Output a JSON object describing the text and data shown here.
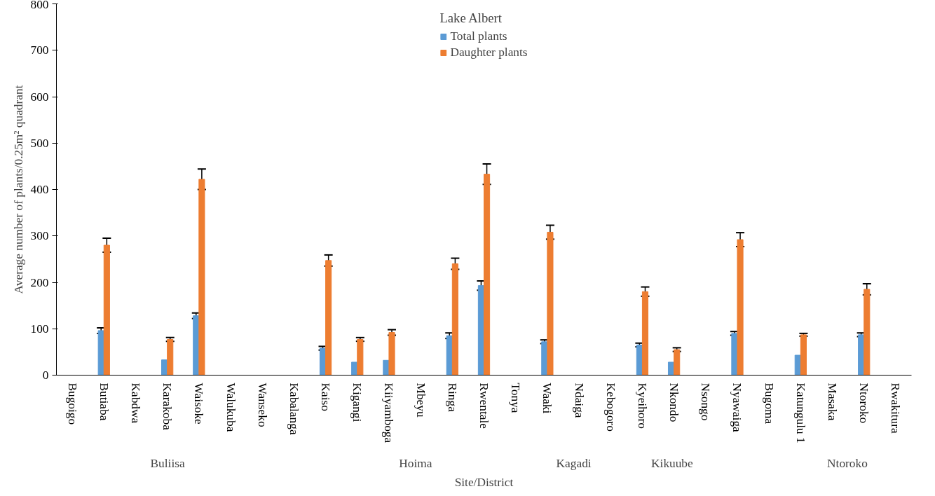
{
  "chart_data": {
    "type": "bar",
    "xlabel": "Site/District",
    "ylabel": "Average number of plants/0.25m² quadrant",
    "legend_title": "Lake Albert",
    "legend": "top",
    "grid": false,
    "categories": [
      "Bugoigo",
      "Butiaba",
      "Kabdwa",
      "Karakoba",
      "Waisoke",
      "Walukuba",
      "Wanseko",
      "Kabalanga",
      "Kaiso",
      "Kigangi",
      "Kiiyamboga",
      "Mbeyu",
      "Ringa",
      "Rwentale",
      "Tonya",
      "Waaki",
      "Ndaiga",
      "Kebogoro",
      "Kyeihoro",
      "Nkondo",
      "Nsongo",
      "Nyawaiga",
      "Bugoma",
      "Katungulu 1",
      "Masaka",
      "Ntoroko",
      "Rwakitura"
    ],
    "ylim": [
      0,
      800
    ],
    "yticks": [
      0,
      100,
      200,
      300,
      400,
      500,
      600,
      700,
      800
    ],
    "series": [
      {
        "name": "Total plants",
        "color": "#5b9bd5",
        "values": [
          null,
          96,
          null,
          33,
          128,
          null,
          null,
          null,
          58,
          28,
          32,
          null,
          85,
          193,
          null,
          72,
          null,
          null,
          65,
          28,
          null,
          90,
          null,
          43,
          null,
          87,
          null
        ],
        "errors": [
          null,
          6,
          null,
          null,
          6,
          null,
          null,
          null,
          4,
          null,
          null,
          null,
          6,
          10,
          null,
          4,
          null,
          null,
          4,
          null,
          null,
          4,
          null,
          null,
          null,
          4,
          null
        ]
      },
      {
        "name": "Daughter plants",
        "color": "#ed7d31",
        "values": [
          null,
          280,
          null,
          77,
          422,
          null,
          null,
          null,
          247,
          77,
          92,
          null,
          240,
          433,
          null,
          308,
          null,
          null,
          180,
          55,
          null,
          292,
          null,
          87,
          null,
          185,
          null
        ],
        "errors": [
          null,
          15,
          null,
          4,
          22,
          null,
          null,
          null,
          12,
          4,
          6,
          null,
          12,
          22,
          null,
          15,
          null,
          null,
          10,
          4,
          null,
          15,
          null,
          3,
          null,
          12,
          null
        ]
      }
    ],
    "annotations": [
      "Buliisa",
      "Hoima",
      "Kagadi",
      "Kikuube",
      "Ntoroko"
    ]
  }
}
